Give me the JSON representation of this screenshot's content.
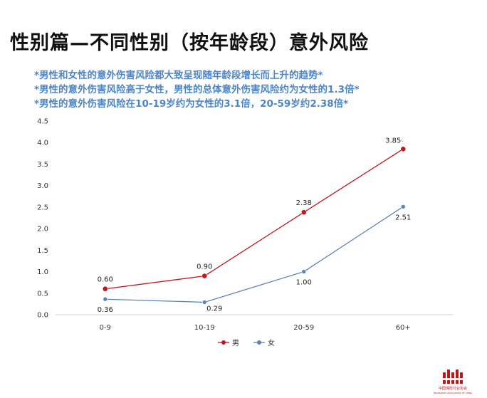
{
  "page": {
    "title": "性别篇—不同性别（按年龄段）意外风险",
    "notes": [
      "*男性和女性的意外伤害风险都大致呈现随年龄段增长而上升的趋势*",
      "*男性的意外伤害风险高于女性，男性的总体意外伤害风险约为女性的1.3倍*",
      "*男性的意外伤害风险在10-19岁约为女性的3.1倍，20-59岁约2.38倍*"
    ]
  },
  "logo": {
    "text": "中国保险行业协会",
    "subtext": "INSURANCE ASSOCIATION OF CHINA"
  },
  "chart_data": {
    "type": "line",
    "categories": [
      "0-9",
      "10-19",
      "20-59",
      "60+"
    ],
    "series": [
      {
        "name": "男",
        "values": [
          0.6,
          0.9,
          2.38,
          3.85
        ],
        "color": "#c0171f",
        "labels": [
          "0.60",
          "0.90",
          "2.38",
          "3.85"
        ],
        "label_pos": [
          "above",
          "above",
          "above",
          "above"
        ]
      },
      {
        "name": "女",
        "values": [
          0.36,
          0.29,
          1.0,
          2.51
        ],
        "color": "#5b83b9",
        "labels": [
          "0.36",
          "0.29",
          "1.00",
          "2.51"
        ],
        "label_pos": [
          "below",
          "below",
          "below",
          "below"
        ]
      }
    ],
    "ylim": [
      0,
      4.5
    ],
    "yticks": [
      "0.0",
      "0.5",
      "1.0",
      "1.5",
      "2.0",
      "2.5",
      "3.0",
      "3.5",
      "4.0",
      "4.5"
    ],
    "grid": false,
    "legend_position": "bottom-center",
    "xlabel": "",
    "ylabel": ""
  }
}
